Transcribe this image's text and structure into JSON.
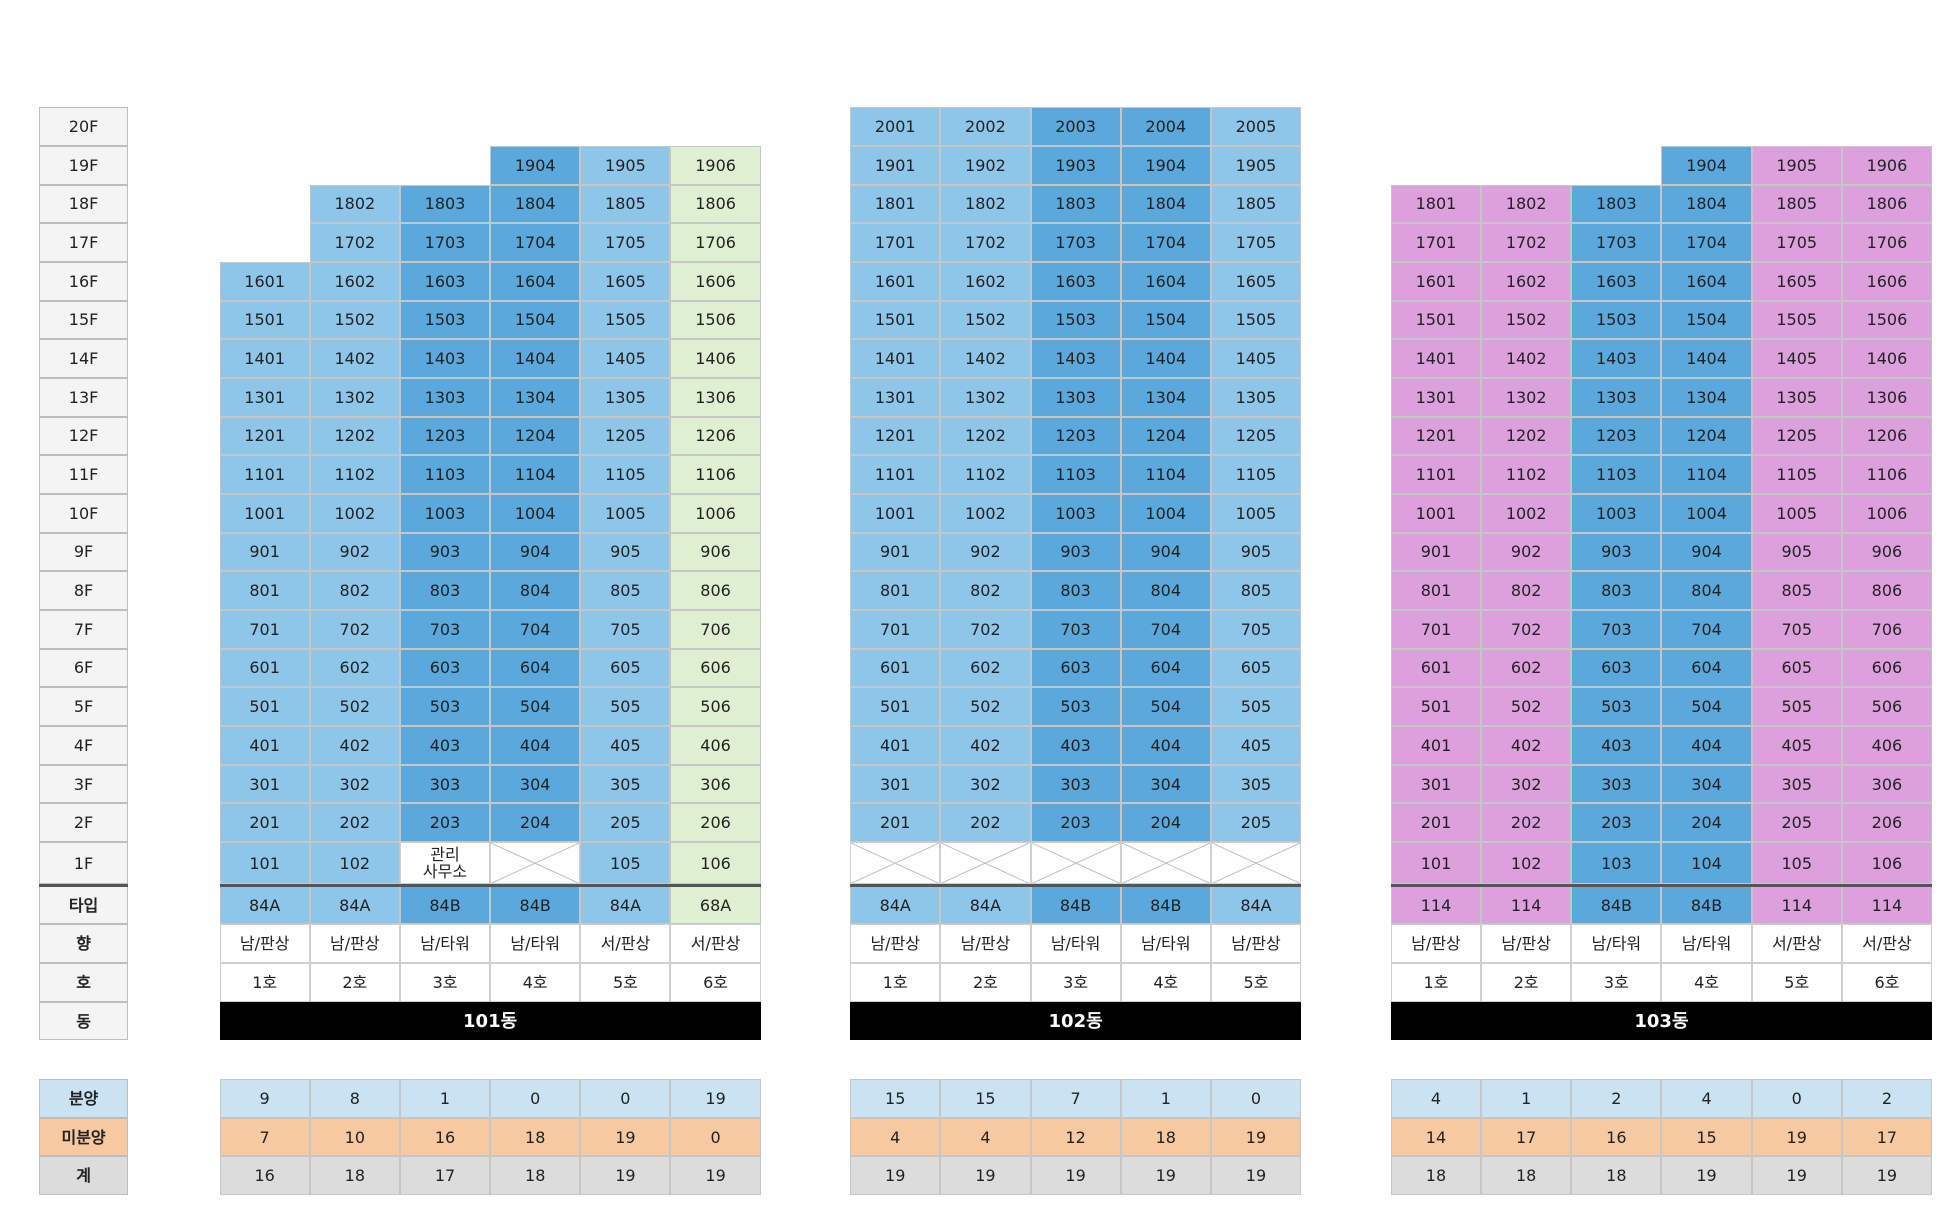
{
  "colors": {
    "type_84A": "#8ec6ea",
    "type_84B": "#5ba9dc",
    "type_68A": "#dff0d2",
    "type_114": "#dca0dc",
    "sold": "#c9e3f3",
    "unsold": "#f6c9a0",
    "total": "#dcdcdc"
  },
  "floor_labels": [
    "20F",
    "19F",
    "18F",
    "17F",
    "16F",
    "15F",
    "14F",
    "13F",
    "12F",
    "11F",
    "10F",
    "9F",
    "8F",
    "7F",
    "6F",
    "5F",
    "4F",
    "3F",
    "2F",
    "1F"
  ],
  "row_labels": {
    "type": "타입",
    "direction": "향",
    "unit": "호",
    "building": "동",
    "sold": "분양",
    "unsold": "미분양",
    "total": "계"
  },
  "buildings": [
    {
      "name": "101동",
      "columns": [
        {
          "unit": "1호",
          "type": "84A",
          "direction": "남/판상",
          "top_floor": 16,
          "first_floor": "101",
          "sold": "9",
          "unsold": "7",
          "total": "16"
        },
        {
          "unit": "2호",
          "type": "84A",
          "direction": "남/판상",
          "top_floor": 18,
          "first_floor": "102",
          "sold": "8",
          "unsold": "10",
          "total": "18"
        },
        {
          "unit": "3호",
          "type": "84B",
          "direction": "남/타워",
          "top_floor": 18,
          "first_floor": "관리\n사무소",
          "first_floor_note": true,
          "sold": "1",
          "unsold": "16",
          "total": "17"
        },
        {
          "unit": "4호",
          "type": "84B",
          "direction": "남/타워",
          "top_floor": 19,
          "first_floor": null,
          "sold": "0",
          "unsold": "18",
          "total": "18"
        },
        {
          "unit": "5호",
          "type": "84A",
          "direction": "서/판상",
          "top_floor": 19,
          "first_floor": "105",
          "sold": "0",
          "unsold": "19",
          "total": "19"
        },
        {
          "unit": "6호",
          "type": "68A",
          "direction": "서/판상",
          "top_floor": 19,
          "first_floor": "106",
          "sold": "19",
          "unsold": "0",
          "total": "19"
        }
      ]
    },
    {
      "name": "102동",
      "columns": [
        {
          "unit": "1호",
          "type": "84A",
          "direction": "남/판상",
          "top_floor": 20,
          "first_floor": null,
          "sold": "15",
          "unsold": "4",
          "total": "19"
        },
        {
          "unit": "2호",
          "type": "84A",
          "direction": "남/판상",
          "top_floor": 20,
          "first_floor": null,
          "sold": "15",
          "unsold": "4",
          "total": "19"
        },
        {
          "unit": "3호",
          "type": "84B",
          "direction": "남/타워",
          "top_floor": 20,
          "first_floor": null,
          "sold": "7",
          "unsold": "12",
          "total": "19"
        },
        {
          "unit": "4호",
          "type": "84B",
          "direction": "남/타워",
          "top_floor": 20,
          "first_floor": null,
          "sold": "1",
          "unsold": "18",
          "total": "19"
        },
        {
          "unit": "5호",
          "type": "84A",
          "direction": "남/판상",
          "top_floor": 20,
          "first_floor": null,
          "sold": "0",
          "unsold": "19",
          "total": "19"
        }
      ]
    },
    {
      "name": "103동",
      "columns": [
        {
          "unit": "1호",
          "type": "114",
          "direction": "남/판상",
          "top_floor": 18,
          "first_floor": "101",
          "sold": "4",
          "unsold": "14",
          "total": "18"
        },
        {
          "unit": "2호",
          "type": "114",
          "direction": "남/판상",
          "top_floor": 18,
          "first_floor": "102",
          "sold": "1",
          "unsold": "17",
          "total": "18"
        },
        {
          "unit": "3호",
          "type": "84B",
          "direction": "남/타워",
          "top_floor": 18,
          "first_floor": "103",
          "sold": "2",
          "unsold": "16",
          "total": "18"
        },
        {
          "unit": "4호",
          "type": "84B",
          "direction": "남/타워",
          "top_floor": 19,
          "first_floor": "104",
          "sold": "4",
          "unsold": "15",
          "total": "19"
        },
        {
          "unit": "5호",
          "type": "114",
          "direction": "서/판상",
          "top_floor": 19,
          "first_floor": "105",
          "sold": "0",
          "unsold": "19",
          "total": "19"
        },
        {
          "unit": "6호",
          "type": "114",
          "direction": "서/판상",
          "top_floor": 19,
          "first_floor": "106",
          "sold": "2",
          "unsold": "17",
          "total": "19"
        }
      ]
    }
  ]
}
